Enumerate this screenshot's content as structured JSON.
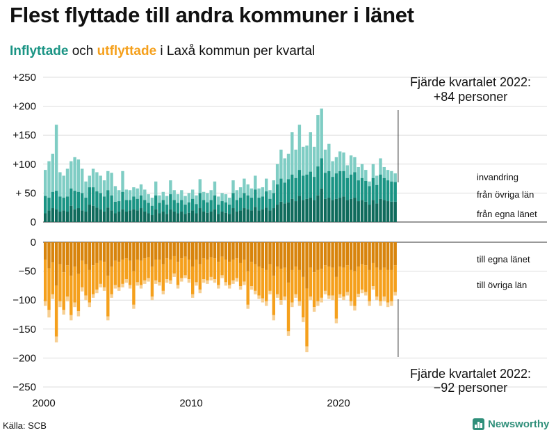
{
  "title": "Flest flyttade till andra kommuner i länet",
  "subtitle": {
    "in_word": "Inflyttade",
    "and_word": " och ",
    "out_word": "utflyttade",
    "rest": " i Laxå kommun per kvartal"
  },
  "source": "Källa: SCB",
  "brand": "Newsworthy",
  "colors": {
    "in_own": "#0f6b5c",
    "in_other": "#1a9484",
    "in_immigration": "#7fcdc4",
    "out_own": "#d8840c",
    "out_other": "#f5a01c",
    "out_emigration": "#f7cf92",
    "grid": "#dddddd"
  },
  "chart_data": {
    "type": "bar",
    "stacked": true,
    "frequency": "quarterly",
    "x_start": "2000Q1",
    "x_end": "2022Q4",
    "x_ticks": [
      "2000",
      "2010",
      "2020"
    ],
    "y_ticks": [
      "+250",
      "+200",
      "+150",
      "+100",
      "+ 50",
      "0",
      "0",
      "−50",
      "−100",
      "−150",
      "−200",
      "−250"
    ],
    "top_panel_ylim": [
      0,
      250
    ],
    "bottom_panel_ylim": [
      -250,
      0
    ],
    "grid": true,
    "labels": {
      "in_immigration": "invandring",
      "in_other": "från övriga län",
      "in_own": "från egna länet",
      "out_own": "till egna länet",
      "out_other": "till övriga län"
    },
    "annotation_top": {
      "line1": "Fjärde kvartalet 2022:",
      "line2": "+84 personer"
    },
    "annotation_bottom": {
      "line1": "Fjärde kvartalet 2022:",
      "line2": "−92 personer"
    },
    "inflow_totals": [
      90,
      105,
      118,
      168,
      86,
      80,
      92,
      105,
      112,
      108,
      92,
      70,
      80,
      92,
      86,
      80,
      72,
      88,
      85,
      62,
      55,
      88,
      56,
      55,
      60,
      58,
      65,
      56,
      48,
      42,
      70,
      46,
      52,
      45,
      72,
      55,
      48,
      55,
      45,
      50,
      56,
      46,
      74,
      52,
      50,
      55,
      70,
      44,
      50,
      48,
      42,
      72,
      55,
      60,
      75,
      65,
      58,
      80,
      58,
      60,
      75,
      55,
      72,
      100,
      125,
      110,
      118,
      155,
      125,
      168,
      130,
      132,
      155,
      130,
      185,
      196,
      125,
      135,
      105,
      112,
      122,
      120,
      98,
      115,
      112,
      95,
      100,
      90,
      70,
      100,
      80,
      110,
      95,
      90,
      88,
      84
    ],
    "inflow_own_county": [
      15,
      20,
      24,
      22,
      18,
      20,
      18,
      28,
      22,
      24,
      20,
      18,
      30,
      28,
      25,
      22,
      18,
      25,
      20,
      15,
      18,
      22,
      18,
      20,
      22,
      20,
      24,
      18,
      15,
      12,
      22,
      15,
      18,
      14,
      22,
      18,
      15,
      18,
      14,
      16,
      20,
      15,
      24,
      18,
      16,
      18,
      22,
      14,
      18,
      16,
      14,
      24,
      18,
      20,
      24,
      22,
      20,
      26,
      20,
      22,
      25,
      20,
      24,
      30,
      35,
      32,
      34,
      40,
      36,
      45,
      38,
      40,
      42,
      38,
      46,
      58,
      40,
      42,
      38,
      40,
      42,
      44,
      38,
      40,
      42,
      36,
      38,
      35,
      30,
      38,
      32,
      40,
      38,
      36,
      35,
      35
    ],
    "inflow_other_counties": [
      30,
      22,
      28,
      32,
      26,
      22,
      26,
      30,
      32,
      28,
      30,
      24,
      30,
      32,
      28,
      28,
      26,
      30,
      26,
      20,
      18,
      30,
      20,
      18,
      22,
      20,
      22,
      20,
      18,
      16,
      24,
      18,
      20,
      16,
      26,
      20,
      18,
      20,
      16,
      18,
      20,
      16,
      26,
      20,
      18,
      20,
      24,
      16,
      18,
      18,
      16,
      26,
      20,
      22,
      26,
      24,
      22,
      30,
      22,
      22,
      28,
      20,
      26,
      35,
      40,
      36,
      40,
      42,
      40,
      45,
      42,
      42,
      45,
      40,
      50,
      52,
      45,
      46,
      40,
      44,
      46,
      44,
      38,
      42,
      44,
      36,
      38,
      36,
      32,
      38,
      32,
      42,
      38,
      36,
      35,
      34
    ],
    "outflow_totals": [
      -110,
      -130,
      -98,
      -173,
      -112,
      -125,
      -102,
      -135,
      -112,
      -128,
      -85,
      -100,
      -112,
      -96,
      -88,
      -78,
      -84,
      -135,
      -96,
      -80,
      -84,
      -78,
      -70,
      -80,
      -115,
      -75,
      -80,
      -72,
      -68,
      -100,
      -72,
      -75,
      -90,
      -70,
      -72,
      -60,
      -80,
      -68,
      -62,
      -70,
      -96,
      -75,
      -88,
      -70,
      -72,
      -66,
      -70,
      -80,
      -62,
      -75,
      -80,
      -72,
      -68,
      -82,
      -74,
      -115,
      -82,
      -90,
      -98,
      -104,
      -110,
      -90,
      -135,
      -96,
      -108,
      -100,
      -162,
      -112,
      -96,
      -110,
      -138,
      -190,
      -100,
      -120,
      -110,
      -104,
      -90,
      -98,
      -100,
      -140,
      -96,
      -100,
      -92,
      -110,
      -118,
      -95,
      -88,
      -92,
      -110,
      -82,
      -100,
      -110,
      -102,
      -112,
      -110,
      -92
    ],
    "outflow_own_county": [
      -30,
      -45,
      -35,
      -75,
      -38,
      -52,
      -40,
      -58,
      -42,
      -55,
      -32,
      -38,
      -48,
      -40,
      -36,
      -32,
      -34,
      -58,
      -42,
      -32,
      -34,
      -30,
      -28,
      -32,
      -50,
      -30,
      -32,
      -28,
      -26,
      -42,
      -30,
      -30,
      -38,
      -28,
      -30,
      -24,
      -34,
      -28,
      -25,
      -30,
      -42,
      -30,
      -38,
      -28,
      -30,
      -26,
      -28,
      -34,
      -25,
      -30,
      -34,
      -30,
      -28,
      -36,
      -30,
      -50,
      -34,
      -38,
      -42,
      -45,
      -48,
      -38,
      -58,
      -42,
      -46,
      -44,
      -70,
      -48,
      -42,
      -48,
      -60,
      -80,
      -44,
      -52,
      -48,
      -46,
      -40,
      -42,
      -44,
      -60,
      -42,
      -44,
      -40,
      -48,
      -50,
      -42,
      -38,
      -40,
      -48,
      -36,
      -44,
      -48,
      -44,
      -48,
      -48,
      -40
    ],
    "outflow_other_counties": [
      -72,
      -72,
      -55,
      -88,
      -64,
      -65,
      -54,
      -68,
      -62,
      -64,
      -46,
      -54,
      -56,
      -50,
      -46,
      -40,
      -44,
      -70,
      -48,
      -42,
      -44,
      -42,
      -36,
      -42,
      -58,
      -39,
      -42,
      -38,
      -36,
      -52,
      -36,
      -39,
      -46,
      -36,
      -36,
      -30,
      -40,
      -34,
      -32,
      -34,
      -48,
      -39,
      -44,
      -36,
      -36,
      -34,
      -36,
      -40,
      -32,
      -39,
      -40,
      -36,
      -34,
      -40,
      -38,
      -58,
      -42,
      -46,
      -50,
      -52,
      -54,
      -46,
      -68,
      -48,
      -54,
      -50,
      -84,
      -56,
      -48,
      -54,
      -70,
      -100,
      -50,
      -60,
      -54,
      -50,
      -44,
      -50,
      -48,
      -72,
      -48,
      -50,
      -46,
      -54,
      -60,
      -47,
      -44,
      -46,
      -54,
      -40,
      -50,
      -54,
      -50,
      -56,
      -54,
      -46
    ]
  }
}
